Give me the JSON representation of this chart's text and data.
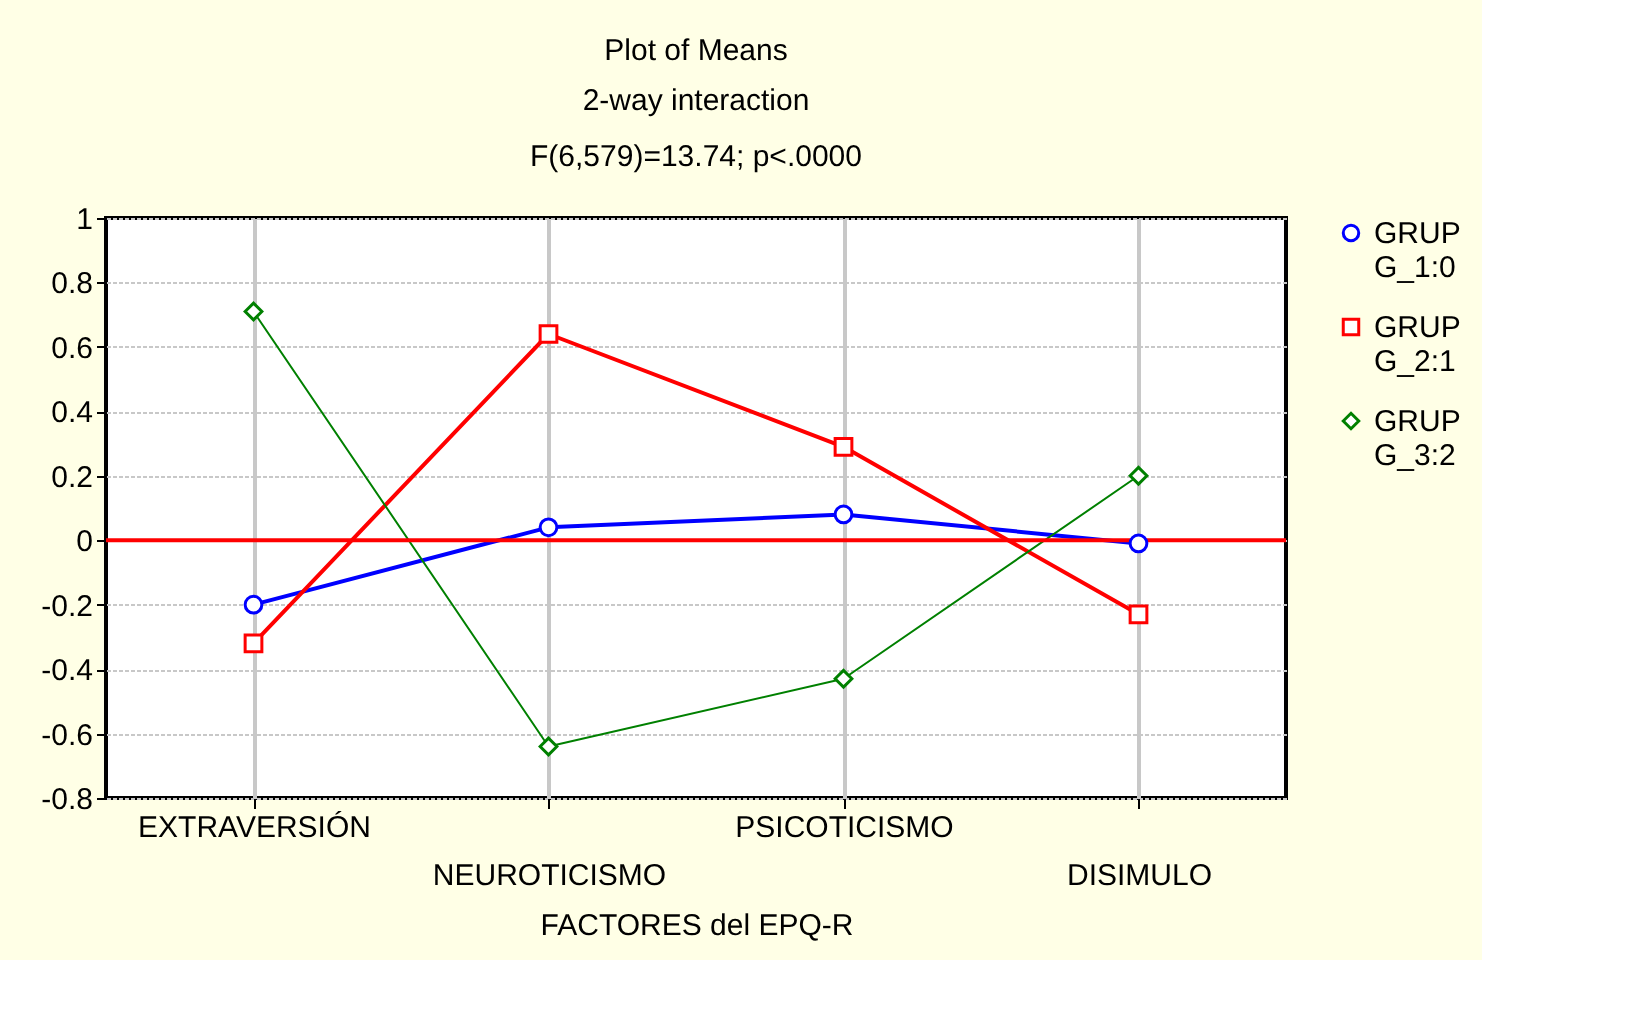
{
  "chart_data": {
    "type": "line",
    "title": "Plot of Means",
    "subtitle": "2-way interaction",
    "annotations": [
      "F(6,579)=13.74; p<.0000"
    ],
    "xlabel": "FACTORES del EPQ-R",
    "categories": [
      "EXTRAVERSIÓN",
      "NEUROTICISMO",
      "PSICOTICISMO",
      "DISIMULO"
    ],
    "series": [
      {
        "name": "GRUP G_1:0",
        "color": "#0000ff",
        "marker": "circle",
        "values": [
          -0.2,
          0.04,
          0.08,
          -0.01
        ]
      },
      {
        "name": "GRUP G_2:1",
        "color": "#ff0000",
        "marker": "square",
        "values": [
          -0.32,
          0.64,
          0.29,
          -0.23
        ]
      },
      {
        "name": "GRUP G_3:2",
        "color": "#008000",
        "marker": "diamond",
        "values": [
          0.71,
          -0.64,
          -0.43,
          0.2
        ]
      }
    ],
    "ylim": [
      -0.8,
      1
    ],
    "yticks": [
      -0.8,
      -0.6,
      -0.4,
      -0.2,
      0,
      0.2,
      0.4,
      0.6,
      0.8,
      1
    ],
    "ref_lines": [
      {
        "axis": "y",
        "value": 0,
        "color": "#ff0000"
      }
    ],
    "grid": true,
    "legend": "right"
  }
}
